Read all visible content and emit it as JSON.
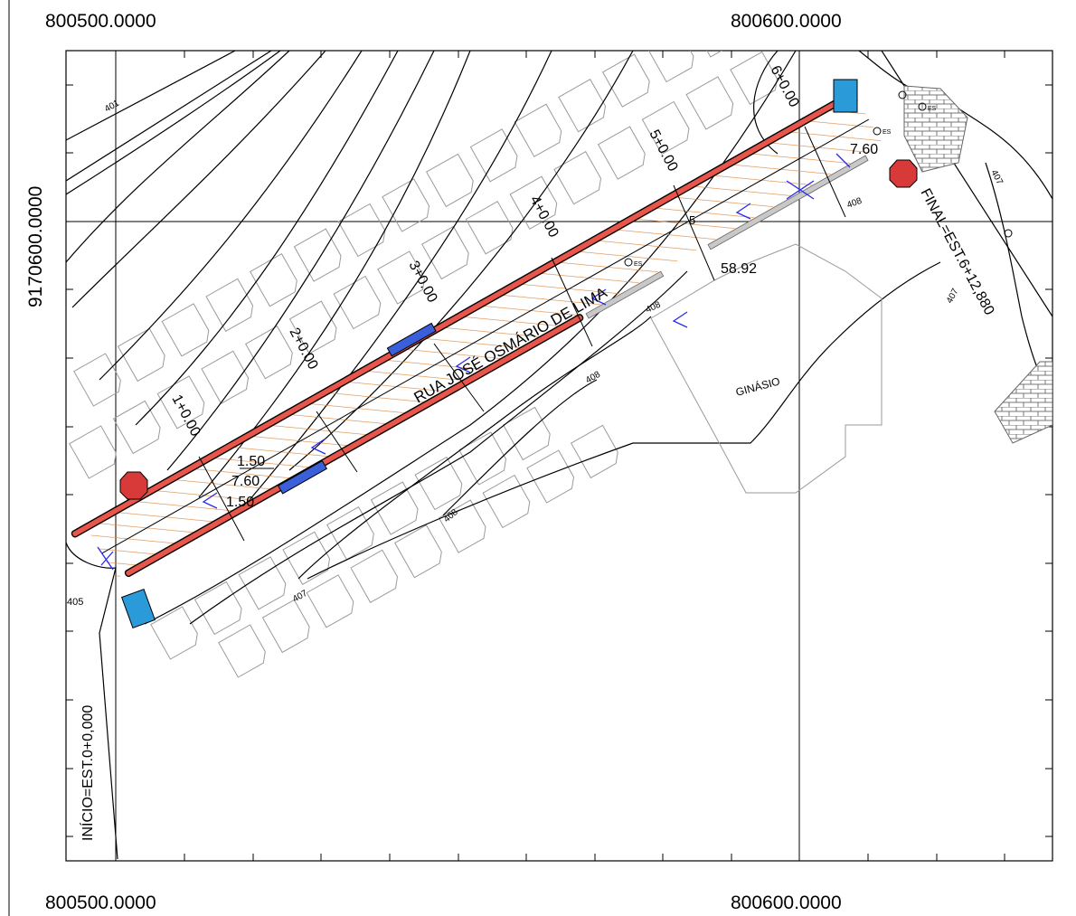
{
  "coords": {
    "top_left": "800500.0000",
    "top_right": "800600.0000",
    "bottom_left": "800500.0000",
    "bottom_right": "800600.0000",
    "left_vertical": "9170600.0000"
  },
  "street_name": "RUA JOSÉ OSMÁRIO DE LIMA",
  "building_label": "GINÁSIO",
  "start_label": "INÍCIO=EST.0+0,000",
  "end_label": "FINAL=EST.6+12,880",
  "stations": [
    "1+0.00",
    "2+0.00",
    "3+0.00",
    "4+0.00",
    "5+0.00",
    "6+0.00"
  ],
  "dimensions": {
    "sidewalk_top": "1.50",
    "road_width": "7.60",
    "sidewalk_bottom": "1.50",
    "road_width_end": "7.60",
    "length": "58.92",
    "tick_5": "5"
  },
  "contours": {
    "c401_a": "401",
    "c405": "405",
    "c407_a": "407",
    "c407_b": "407",
    "c407_c": "407",
    "c408_a": "408",
    "c408_b": "408",
    "c408_c": "408",
    "c408_d": "408"
  },
  "markers": {
    "es_a": "ES",
    "es_b": "ES",
    "es_c": "ES"
  },
  "colors": {
    "curb": "#e8554a",
    "road_hatch": "#d98c4a",
    "storm_inlet": "#3a5fd8",
    "bus_stop": "#2b9ad8",
    "stop_sign": "#d83a3a",
    "paving": "#9a9a9a",
    "flow_arrow": "#2a2af0"
  }
}
